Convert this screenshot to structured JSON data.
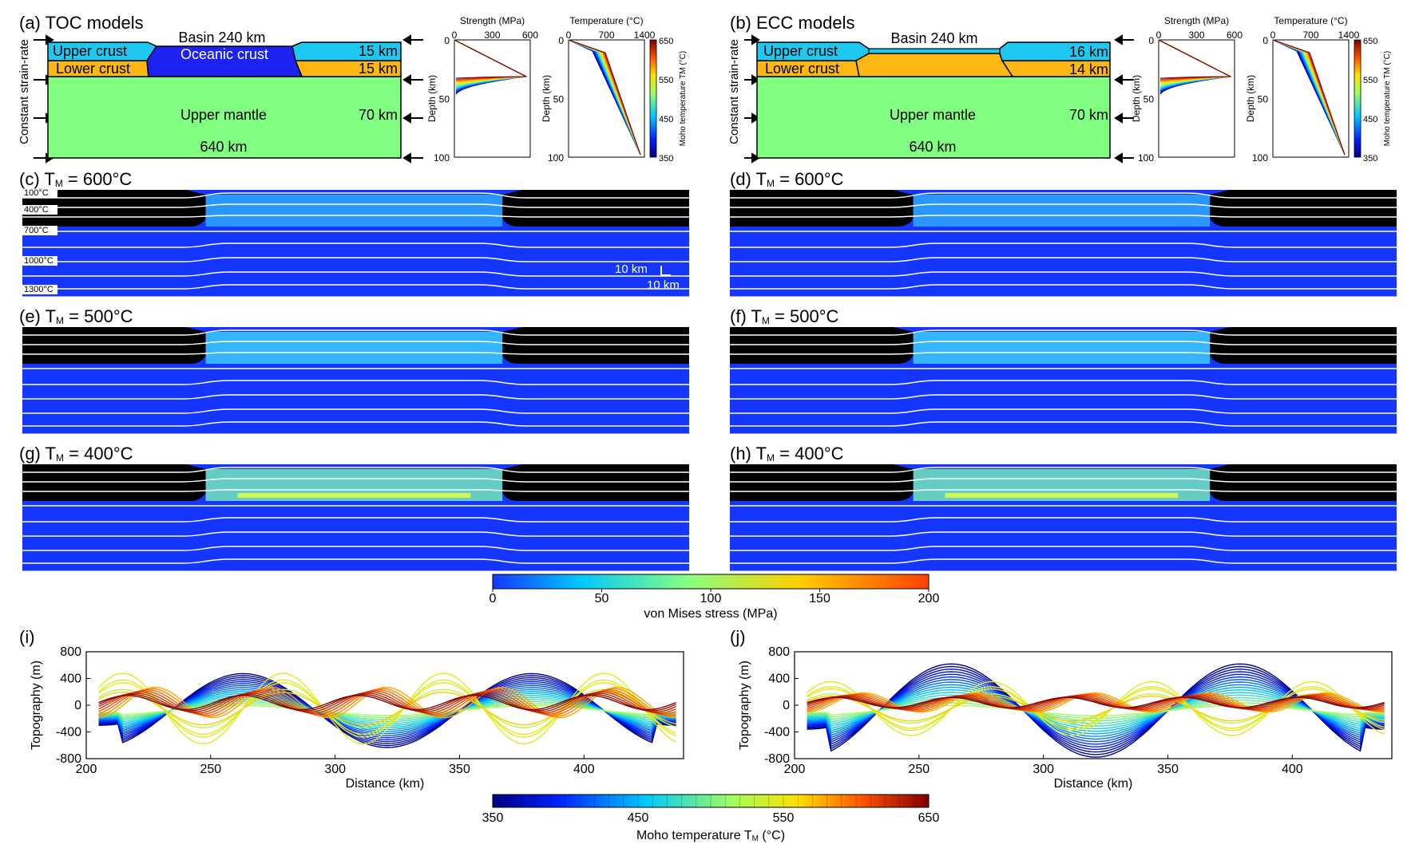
{
  "panels": {
    "a": {
      "title": "(a) TOC models",
      "basin": "Basin 240 km",
      "upper_crust": "Upper crust",
      "lower_crust": "Lower crust",
      "basin_fill": "Oceanic crust",
      "uc_thick": "15 km",
      "lc_thick": "15 km",
      "mantle": "Upper mantle",
      "mantle_thick": "70 km",
      "width": "640 km",
      "strain": "Constant strain-rate"
    },
    "b": {
      "title": "(b) ECC models",
      "basin": "Basin 240 km",
      "upper_crust": "Upper crust",
      "lower_crust": "Lower crust",
      "uc_thick": "16 km",
      "lc_thick": "14 km",
      "mantle": "Upper mantle",
      "mantle_thick": "70 km",
      "width": "640 km",
      "strain": "Constant strain-rate"
    },
    "c": {
      "title": "(c) T",
      "sub": "M",
      "rest": " = 600°C"
    },
    "d": {
      "title": "(d) T",
      "sub": "M",
      "rest": " = 600°C"
    },
    "e": {
      "title": "(e) T",
      "sub": "M",
      "rest": " = 500°C"
    },
    "f": {
      "title": "(f) T",
      "sub": "M",
      "rest": " = 500°C"
    },
    "g": {
      "title": "(g) T",
      "sub": "M",
      "rest": " = 400°C"
    },
    "h": {
      "title": "(h) T",
      "sub": "M",
      "rest": " = 400°C"
    },
    "i": {
      "title": "(i)"
    },
    "j": {
      "title": "(j)"
    }
  },
  "isotherm_labels": [
    "100°C",
    "400°C",
    "700°C",
    "1000°C",
    "1300°C"
  ],
  "scale_bar": {
    "h": "10 km",
    "v": "10 km"
  },
  "strength_plot": {
    "title": "Strength (MPa)",
    "xticks": [
      "0",
      "300",
      "600"
    ],
    "ylabel": "Depth (km)",
    "yticks": [
      "0",
      "50",
      "100"
    ]
  },
  "temperature_plot": {
    "title": "Temperature (°C)",
    "xticks": [
      "0",
      "700",
      "1400"
    ],
    "ylabel": "Depth (km)",
    "yticks": [
      "0",
      "50",
      "100"
    ]
  },
  "moho_mini_bar": {
    "label": "Moho temperature T",
    "sub": "M",
    "unit": " (°C)",
    "ticks": [
      "650",
      "550",
      "450",
      "350"
    ]
  },
  "stress_colorbar": {
    "label": "von Mises stress (MPa)",
    "ticks": [
      "0",
      "50",
      "100",
      "150",
      "200"
    ]
  },
  "moho_colorbar": {
    "label": "Moho temperature T",
    "sub": "M",
    "unit": " (°C)",
    "ticks": [
      "350",
      "450",
      "550",
      "650"
    ]
  },
  "topo_axes": {
    "ylabel": "Topography (m)",
    "xlabel": "Distance (km)",
    "yticks": [
      "800",
      "400",
      "0",
      "-400",
      "-800"
    ],
    "xticks": [
      "200",
      "250",
      "300",
      "350",
      "400"
    ]
  },
  "colors": {
    "upper_crust": "#1ec8f0",
    "lower_crust": "#fcb712",
    "mantle": "#80ff80",
    "oceanic": "#1e22f0",
    "black": "#000000",
    "stress_low": "#1536ff"
  },
  "chart_data": [
    {
      "type": "line",
      "id": "i",
      "x": [
        200,
        250,
        300,
        350,
        400
      ],
      "xlabel": "Distance (km)",
      "ylabel": "Topography (m)",
      "xlim": [
        200,
        440
      ],
      "ylim": [
        -800,
        800
      ],
      "series": [
        {
          "tm": 350,
          "amplitude_m": 580,
          "shape": "two-hump-low-center"
        },
        {
          "tm": 450,
          "amplitude_m": 300,
          "shape": "two-hump-low-center"
        },
        {
          "tm": 525,
          "amplitude_m": -300,
          "shape": "inverted"
        },
        {
          "tm": 550,
          "amplitude_m": 600,
          "shape": "four-hump"
        },
        {
          "tm": 650,
          "amplitude_m": 200,
          "shape": "short-wavelength"
        }
      ]
    },
    {
      "type": "line",
      "id": "j",
      "x": [
        200,
        250,
        300,
        350,
        400
      ],
      "xlabel": "Distance (km)",
      "ylabel": "Topography (m)",
      "xlim": [
        200,
        440
      ],
      "ylim": [
        -800,
        800
      ],
      "series": [
        {
          "tm": 350,
          "amplitude_m": 750,
          "shape": "two-hump-low-center"
        },
        {
          "tm": 450,
          "amplitude_m": 300,
          "shape": "two-hump-low-center"
        },
        {
          "tm": 525,
          "amplitude_m": -300,
          "shape": "inverted"
        },
        {
          "tm": 550,
          "amplitude_m": 450,
          "shape": "four-hump"
        },
        {
          "tm": 650,
          "amplitude_m": 100,
          "shape": "short-wavelength"
        }
      ]
    }
  ]
}
